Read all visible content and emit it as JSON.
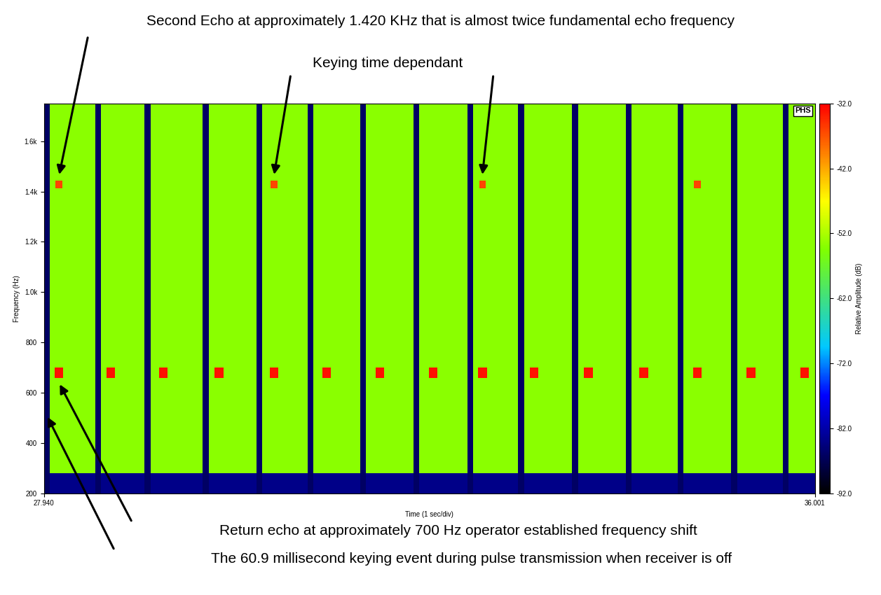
{
  "chart_data": {
    "type": "spectrogram",
    "xlabel": "Time (1 sec/div)",
    "ylabel": "Frequency (Hz)",
    "xlim": [
      27.94,
      36.001
    ],
    "xticks": [
      {
        "value": 27.94,
        "label": "27.940"
      },
      {
        "value": 36.001,
        "label": "36.001"
      }
    ],
    "ylim": [
      200,
      1750
    ],
    "yticks": [
      200,
      400,
      600,
      800,
      {
        "value": 1000,
        "label": "1.0k"
      },
      {
        "value": 1200,
        "label": "1.2k"
      },
      {
        "value": 1400,
        "label": "1.4k"
      },
      {
        "value": 1600,
        "label": "1.6k"
      }
    ],
    "logo": "PHS",
    "colorbar": {
      "label": "Relative Amplitude (dB)",
      "range": [
        -92,
        -32
      ],
      "ticks": [
        {
          "value": -32,
          "label": "-32.0"
        },
        {
          "value": -42,
          "label": "-42.0"
        },
        {
          "value": -52,
          "label": "-52.0"
        },
        {
          "value": -62,
          "label": "-62.0"
        },
        {
          "value": -72,
          "label": "-72.0"
        },
        {
          "value": -82,
          "label": "-82.0"
        },
        {
          "value": -92,
          "label": "-92.0"
        }
      ]
    },
    "background_db": -54,
    "low_band": {
      "max_hz": 280,
      "db": -84
    },
    "keying": {
      "duration_s": 0.0609,
      "db": -86,
      "times": [
        27.968,
        28.502,
        29.022,
        29.627,
        30.189,
        30.723,
        31.271,
        31.833,
        32.395,
        32.929,
        33.492,
        34.054,
        34.595,
        35.157,
        35.698
      ]
    },
    "return_echo": {
      "frequency_hz": 680,
      "duration_s": 0.09,
      "bandwidth_hz": 40,
      "db": -33,
      "times": [
        28.095,
        28.636,
        29.184,
        29.767,
        30.343,
        30.892,
        31.447,
        32.009,
        32.522,
        33.063,
        33.632,
        34.209,
        34.771,
        35.333,
        35.895
      ]
    },
    "second_echo": {
      "frequency_hz": 1430,
      "duration_s": 0.07,
      "bandwidth_hz": 30,
      "db": -36,
      "times": [
        28.095,
        30.343,
        32.522,
        34.771
      ]
    },
    "annotations": {
      "second_echo": "Second Echo at approximately 1.420 KHz that is almost twice fundamental echo frequency",
      "keying_time": "Keying time dependant",
      "return_echo": "Return echo at approximately 700 Hz operator established frequency shift",
      "keying_event": "The 60.9 millisecond keying event during pulse transmission when receiver is off"
    }
  }
}
